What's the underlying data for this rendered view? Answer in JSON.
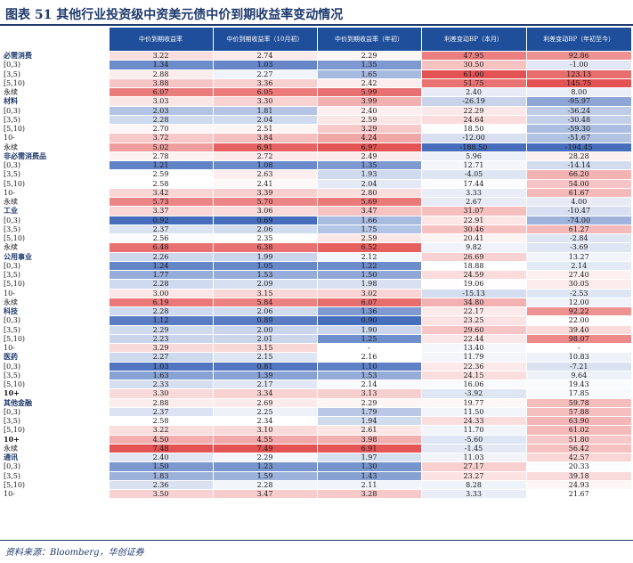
{
  "title": "图表 51   其他行业投资级中资美元债中价到期收益率变动情况",
  "footnote": "资料来源：Bloomberg，华创证券",
  "colors": {
    "header_bg": "#1f4e9a",
    "pos_hi": "#e34a4a",
    "neg_hi": "#3d66b8"
  },
  "columns": [
    "中价到期收益率",
    "中价到期收益率（10月初）",
    "中价到期收益率（年初）",
    "利差变动BP（本月）",
    "利差变动BP（年初至今）"
  ],
  "rows": [
    {
      "label": "必需消费",
      "group": true,
      "values": [
        "3.22",
        "2.74",
        "2.29",
        "47.95",
        "92.86"
      ]
    },
    {
      "label": "[0,3)",
      "values": [
        "1.34",
        "1.03",
        "1.35",
        "30.50",
        "-1.00"
      ]
    },
    {
      "label": "[3,5)",
      "values": [
        "2.88",
        "2.27",
        "1.65",
        "61.00",
        "123.13"
      ]
    },
    {
      "label": "[5,10)",
      "values": [
        "3.88",
        "3.36",
        "2.42",
        "51.75",
        "145.75"
      ]
    },
    {
      "label": "永续",
      "values": [
        "6.07",
        "6.05",
        "5.99",
        "2.40",
        "8.00"
      ]
    },
    {
      "label": "材料",
      "group": true,
      "values": [
        "3.03",
        "3.30",
        "3.99",
        "-26.19",
        "-95.97"
      ]
    },
    {
      "label": "[0,3)",
      "values": [
        "2.03",
        "1.81",
        "2.40",
        "22.29",
        "-36.24"
      ]
    },
    {
      "label": "[3,5)",
      "values": [
        "2.28",
        "2.04",
        "2.59",
        "24.64",
        "-30.48"
      ]
    },
    {
      "label": "[5,10)",
      "values": [
        "2.70",
        "2.51",
        "3.29",
        "18.50",
        "-59.30"
      ]
    },
    {
      "label": "10-",
      "values": [
        "3.72",
        "3.84",
        "4.24",
        "-12.00",
        "-51.67"
      ]
    },
    {
      "label": "永续",
      "values": [
        "5.02",
        "6.91",
        "6.97",
        "-188.50",
        "-194.45"
      ]
    },
    {
      "label": "非必需消费品",
      "group": true,
      "values": [
        "2.78",
        "2.72",
        "2.49",
        "5.96",
        "28.28"
      ]
    },
    {
      "label": "[0,3)",
      "values": [
        "1.21",
        "1.08",
        "1.35",
        "12.71",
        "-14.14"
      ]
    },
    {
      "label": "[3,5)",
      "values": [
        "2.59",
        "2.63",
        "1.93",
        "-4.05",
        "66.20"
      ]
    },
    {
      "label": "[5,10)",
      "values": [
        "2.58",
        "2.41",
        "2.04",
        "17.44",
        "54.00"
      ]
    },
    {
      "label": "10-",
      "values": [
        "3.42",
        "3.39",
        "2.80",
        "3.33",
        "61.67"
      ]
    },
    {
      "label": "永续",
      "values": [
        "5.73",
        "5.70",
        "5.69",
        "2.67",
        "4.00"
      ]
    },
    {
      "label": "工业",
      "group": true,
      "values": [
        "3.37",
        "3.06",
        "3.47",
        "31.07",
        "-10.47"
      ]
    },
    {
      "label": "[0,3)",
      "values": [
        "0.92",
        "0.69",
        "1.66",
        "22.91",
        "-74.00"
      ]
    },
    {
      "label": "[3,5)",
      "values": [
        "2.37",
        "2.06",
        "1.75",
        "30.46",
        "61.27"
      ]
    },
    {
      "label": "[5,10)",
      "values": [
        "2.56",
        "2.35",
        "2.59",
        "20.41",
        "-2.84"
      ]
    },
    {
      "label": "永续",
      "values": [
        "6.48",
        "6.38",
        "6.52",
        "9.82",
        "-3.69"
      ]
    },
    {
      "label": "公用事业",
      "group": true,
      "values": [
        "2.26",
        "1.99",
        "2.12",
        "26.69",
        "13.27"
      ]
    },
    {
      "label": "[0,3)",
      "values": [
        "1.24",
        "1.05",
        "1.22",
        "18.88",
        "2.14"
      ]
    },
    {
      "label": "[3,5)",
      "values": [
        "1.77",
        "1.53",
        "1.50",
        "24.59",
        "27.40"
      ]
    },
    {
      "label": "[5,10)",
      "values": [
        "2.28",
        "2.09",
        "1.98",
        "19.06",
        "30.05"
      ]
    },
    {
      "label": "10-",
      "values": [
        "3.00",
        "3.15",
        "3.02",
        "-15.13",
        "-2.53"
      ]
    },
    {
      "label": "永续",
      "values": [
        "6.19",
        "5.84",
        "6.07",
        "34.80",
        "12.00"
      ]
    },
    {
      "label": "科技",
      "group": true,
      "values": [
        "2.28",
        "2.06",
        "1.36",
        "22.17",
        "92.22"
      ]
    },
    {
      "label": "[0,3)",
      "values": [
        "1.12",
        "0.89",
        "0.90",
        "23.25",
        "22.00"
      ]
    },
    {
      "label": "[3,5)",
      "values": [
        "2.29",
        "2.00",
        "1.90",
        "29.60",
        "39.40"
      ]
    },
    {
      "label": "[5,10)",
      "values": [
        "2.23",
        "2.01",
        "1.25",
        "22.44",
        "98.07"
      ]
    },
    {
      "label": "10-",
      "values": [
        "3.29",
        "3.15",
        "-",
        "13.40",
        "-"
      ]
    },
    {
      "label": "医药",
      "group": true,
      "values": [
        "2.27",
        "2.15",
        "2.16",
        "11.79",
        "10.83"
      ]
    },
    {
      "label": "[0,3)",
      "values": [
        "1.03",
        "0.81",
        "1.10",
        "22.36",
        "-7.21"
      ]
    },
    {
      "label": "[3,5)",
      "values": [
        "1.63",
        "1.39",
        "1.53",
        "24.15",
        "9.64"
      ]
    },
    {
      "label": "[5,10)",
      "values": [
        "2.33",
        "2.17",
        "2.14",
        "16.06",
        "19.43"
      ]
    },
    {
      "label": "10+",
      "bold": true,
      "values": [
        "3.30",
        "3.34",
        "3.13",
        "-3.92",
        "17.85"
      ]
    },
    {
      "label": "其他金融",
      "group": true,
      "values": [
        "2.88",
        "2.69",
        "2.29",
        "19.77",
        "59.78"
      ]
    },
    {
      "label": "[0,3)",
      "values": [
        "2.37",
        "2.25",
        "1.79",
        "11.50",
        "57.88"
      ]
    },
    {
      "label": "[3,5)",
      "values": [
        "2.58",
        "2.34",
        "1.94",
        "24.33",
        "63.90"
      ]
    },
    {
      "label": "[5,10)",
      "values": [
        "3.22",
        "3.10",
        "2.61",
        "11.70",
        "61.02"
      ]
    },
    {
      "label": "10+",
      "bold": true,
      "values": [
        "4.50",
        "4.55",
        "3.98",
        "-5.60",
        "51.80"
      ]
    },
    {
      "label": "永续",
      "values": [
        "7.48",
        "7.49",
        "6.91",
        "-1.45",
        "56.42"
      ]
    },
    {
      "label": "通讯",
      "group": true,
      "values": [
        "2.40",
        "2.29",
        "1.97",
        "11.03",
        "42.57"
      ]
    },
    {
      "label": "[0,3)",
      "values": [
        "1.50",
        "1.23",
        "1.30",
        "27.17",
        "20.33"
      ]
    },
    {
      "label": "[3,5)",
      "values": [
        "1.83",
        "1.59",
        "1.43",
        "23.27",
        "39.18"
      ]
    },
    {
      "label": "[5,10)",
      "values": [
        "2.36",
        "2.28",
        "2.11",
        "8.28",
        "24.93"
      ]
    },
    {
      "label": "10-",
      "values": [
        "3.50",
        "3.47",
        "3.28",
        "3.33",
        "21.67"
      ]
    }
  ]
}
